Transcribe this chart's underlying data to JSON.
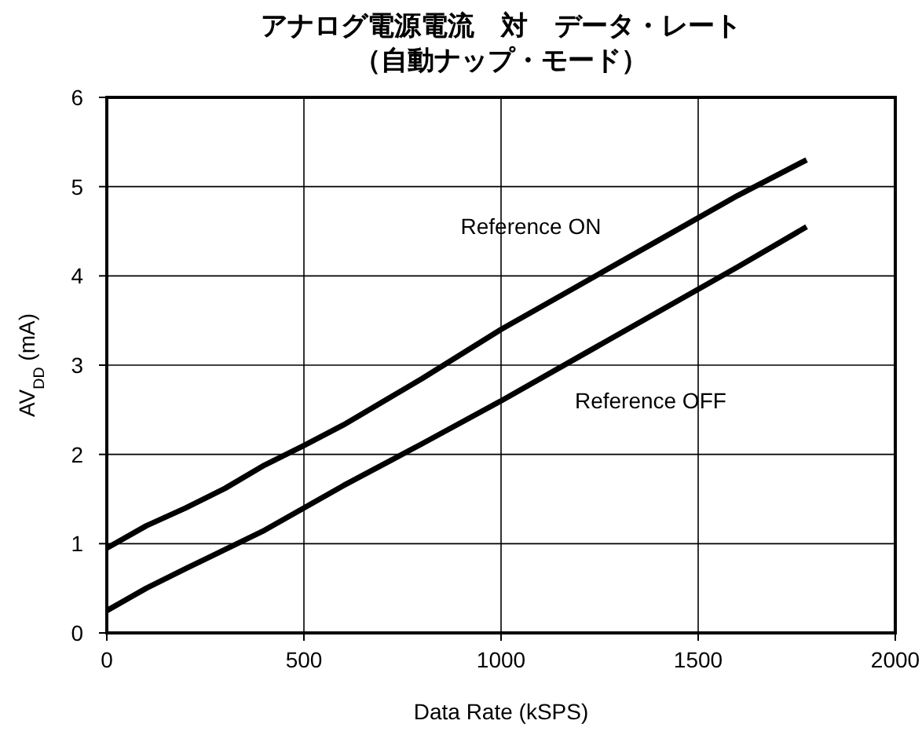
{
  "chart_data": {
    "type": "line",
    "title": "アナログ電源電流　対　データ・レート",
    "subtitle": "（自動ナップ・モード）",
    "xlabel": "Data Rate (kSPS)",
    "ylabel": "AV$_{DD}$ (mA)",
    "xlim": [
      0,
      2000
    ],
    "xticks": [
      0,
      500,
      1000,
      1500,
      2000
    ],
    "ylim": [
      0,
      6
    ],
    "yticks": [
      0,
      1,
      2,
      3,
      4,
      5,
      6
    ],
    "grid": true,
    "line_style": "solid",
    "series": [
      {
        "name": "Reference ON",
        "color": "#000000",
        "x": [
          0,
          100,
          200,
          300,
          400,
          500,
          600,
          800,
          1000,
          1200,
          1400,
          1600,
          1775
        ],
        "values": [
          0.95,
          1.2,
          1.4,
          1.62,
          1.88,
          2.1,
          2.33,
          2.85,
          3.4,
          3.9,
          4.4,
          4.9,
          5.3
        ]
      },
      {
        "name": "Reference OFF",
        "color": "#000000",
        "x": [
          0,
          100,
          200,
          400,
          600,
          800,
          1000,
          1200,
          1400,
          1600,
          1775
        ],
        "values": [
          0.25,
          0.5,
          0.72,
          1.15,
          1.65,
          2.12,
          2.6,
          3.1,
          3.6,
          4.1,
          4.55
        ]
      }
    ]
  }
}
